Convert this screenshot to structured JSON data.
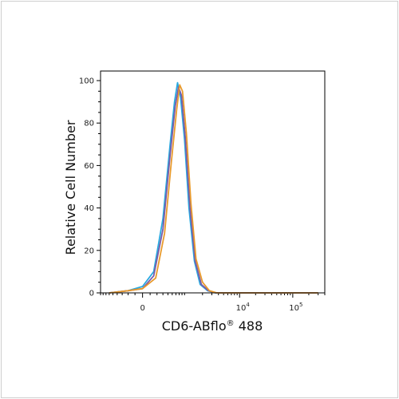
{
  "chart_data": {
    "type": "line",
    "title": "",
    "xlabel": "CD6-ABflo® 488",
    "ylabel": "Relative Cell Number",
    "x_scale": "biexponential",
    "x_ticks": [
      {
        "value": 0,
        "label": "0"
      },
      {
        "value": 10000,
        "label": "10",
        "exp": "4"
      },
      {
        "value": 100000,
        "label": "10",
        "exp": "5"
      }
    ],
    "ylim": [
      0,
      100
    ],
    "y_ticks": [
      0,
      20,
      40,
      60,
      80,
      100
    ],
    "grid": false,
    "legend": "none",
    "series": [
      {
        "color": "#29a9e0",
        "x": [
          -600,
          -200,
          0,
          150,
          300,
          450,
          560,
          650,
          750,
          900,
          1100,
          1400,
          1800,
          2500,
          3500,
          5000,
          8000,
          20000,
          300000
        ],
        "y": [
          0,
          1,
          3,
          10,
          35,
          70,
          90,
          99,
          92,
          72,
          40,
          15,
          4,
          1,
          0,
          0,
          0,
          0,
          0
        ]
      },
      {
        "color": "#7b5aa6",
        "x": [
          -600,
          -200,
          0,
          150,
          300,
          450,
          580,
          680,
          780,
          930,
          1150,
          1450,
          1900,
          2600,
          3600,
          5000,
          8000,
          20000,
          300000
        ],
        "y": [
          0,
          1,
          2,
          8,
          30,
          65,
          88,
          97,
          93,
          73,
          40,
          15,
          4,
          1,
          0,
          0,
          0,
          0,
          0
        ]
      },
      {
        "color": "#e89a2c",
        "x": [
          -600,
          -200,
          0,
          180,
          330,
          480,
          620,
          720,
          820,
          980,
          1200,
          1500,
          2000,
          2700,
          3700,
          5000,
          8000,
          20000,
          300000
        ],
        "y": [
          0,
          1,
          2,
          7,
          28,
          62,
          86,
          98,
          95,
          75,
          42,
          16,
          5,
          1,
          0,
          0,
          0,
          0,
          0
        ]
      }
    ]
  }
}
